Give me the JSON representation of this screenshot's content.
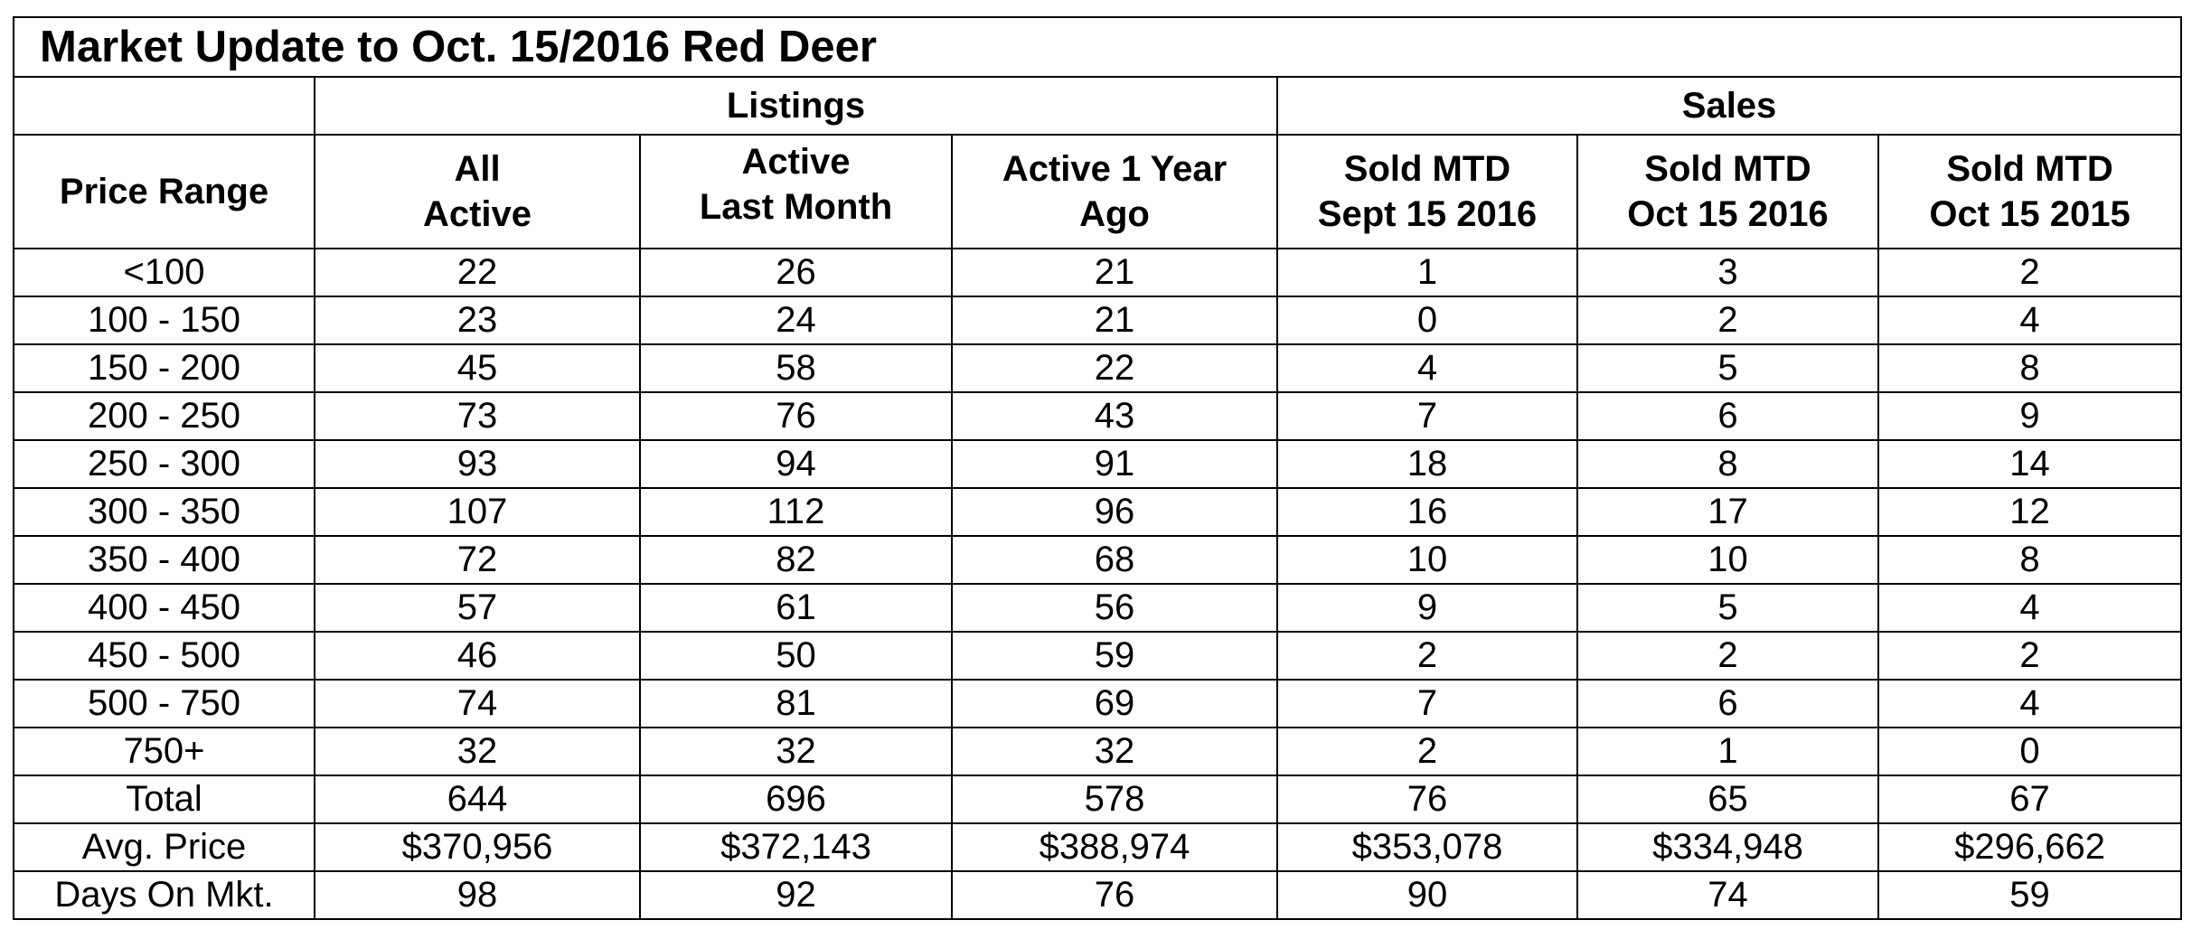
{
  "title": "Market Update to Oct. 15/2016 Red Deer",
  "groups": {
    "listings": "Listings",
    "sales": "Sales"
  },
  "headers": {
    "price_range": "Price Range",
    "all_active_line1": "All",
    "all_active_line2": "Active",
    "active_last_month_line1": "Active",
    "active_last_month_line2": "Last Month",
    "active_1yr_line1": "Active 1 Year",
    "active_1yr_line2": "Ago",
    "sold_sept_line1": "Sold MTD",
    "sold_sept_line2": "Sept 15 2016",
    "sold_oct16_line1": "Sold MTD",
    "sold_oct16_line2": "Oct 15 2016",
    "sold_oct15_line1": "Sold MTD",
    "sold_oct15_line2": "Oct 15 2015"
  },
  "rows": [
    [
      "<100",
      "22",
      "26",
      "21",
      "1",
      "3",
      "2"
    ],
    [
      "100 - 150",
      "23",
      "24",
      "21",
      "0",
      "2",
      "4"
    ],
    [
      "150 - 200",
      "45",
      "58",
      "22",
      "4",
      "5",
      "8"
    ],
    [
      "200 - 250",
      "73",
      "76",
      "43",
      "7",
      "6",
      "9"
    ],
    [
      "250 - 300",
      "93",
      "94",
      "91",
      "18",
      "8",
      "14"
    ],
    [
      "300 - 350",
      "107",
      "112",
      "96",
      "16",
      "17",
      "12"
    ],
    [
      "350 - 400",
      "72",
      "82",
      "68",
      "10",
      "10",
      "8"
    ],
    [
      "400 - 450",
      "57",
      "61",
      "56",
      "9",
      "5",
      "4"
    ],
    [
      "450 - 500",
      "46",
      "50",
      "59",
      "2",
      "2",
      "2"
    ],
    [
      "500 - 750",
      "74",
      "81",
      "69",
      "7",
      "6",
      "4"
    ],
    [
      "750+",
      "32",
      "32",
      "32",
      "2",
      "1",
      "0"
    ],
    [
      "Total",
      "644",
      "696",
      "578",
      "76",
      "65",
      "67"
    ],
    [
      "Avg. Price",
      "$370,956",
      "$372,143",
      "$388,974",
      "$353,078",
      "$334,948",
      "$296,662"
    ],
    [
      "Days On Mkt.",
      "98",
      "92",
      "76",
      "90",
      "74",
      "59"
    ]
  ]
}
